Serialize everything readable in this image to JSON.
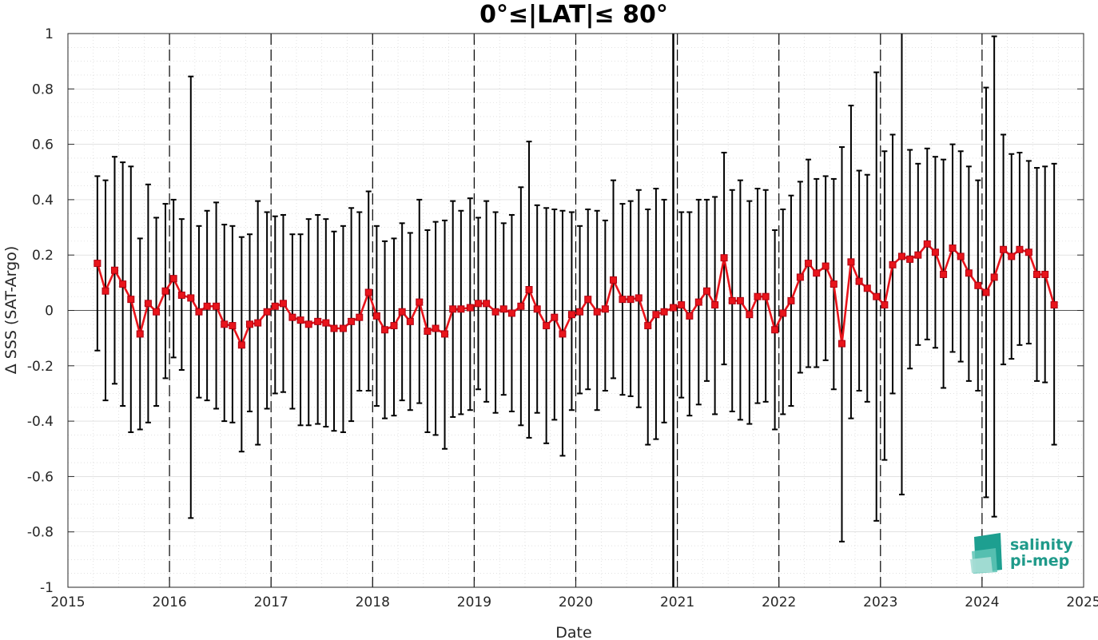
{
  "chart_data": {
    "type": "line",
    "title": "0°≤|LAT|≤ 80°",
    "xlabel": "Date",
    "ylabel": "Δ SSS (SAT-Argo)",
    "xlim": [
      2015,
      2025
    ],
    "ylim": [
      -1,
      1
    ],
    "xticks": [
      2015,
      2016,
      2017,
      2018,
      2019,
      2020,
      2021,
      2022,
      2023,
      2024,
      2025
    ],
    "yticks": [
      -1,
      -0.8,
      -0.6,
      -0.4,
      -0.2,
      0,
      0.2,
      0.4,
      0.6,
      0.8,
      1
    ],
    "ytick_labels": [
      "-1",
      "-0.8",
      "-0.6",
      "-0.4",
      "-0.2",
      "0",
      "0.2",
      "0.4",
      "0.6",
      "0.8",
      "1"
    ],
    "grid": true,
    "year_dividers": [
      2016,
      2017,
      2018,
      2019,
      2020,
      2021,
      2022,
      2023,
      2024
    ],
    "solid_marker_line": 2020.96,
    "colors": {
      "series": "#e8141b",
      "errorbar": "#000000",
      "grid": "#d0d0d0",
      "zero_line": "#555555"
    },
    "series": [
      {
        "x": [
          2015.29,
          2015.37,
          2015.46,
          2015.54,
          2015.62,
          2015.71,
          2015.79,
          2015.87,
          2015.96,
          2016.04,
          2016.12,
          2016.21,
          2016.29,
          2016.37,
          2016.46,
          2016.54,
          2016.62,
          2016.71,
          2016.79,
          2016.87,
          2016.96,
          2017.04,
          2017.12,
          2017.21,
          2017.29,
          2017.37,
          2017.46,
          2017.54,
          2017.62,
          2017.71,
          2017.79,
          2017.87,
          2017.96,
          2018.04,
          2018.12,
          2018.21,
          2018.29,
          2018.37,
          2018.46,
          2018.54,
          2018.62,
          2018.71,
          2018.79,
          2018.87,
          2018.96,
          2019.04,
          2019.12,
          2019.21,
          2019.29,
          2019.37,
          2019.46,
          2019.54,
          2019.62,
          2019.71,
          2019.79,
          2019.87,
          2019.96,
          2020.04,
          2020.12,
          2020.21,
          2020.29,
          2020.37,
          2020.46,
          2020.54,
          2020.62,
          2020.71,
          2020.79,
          2020.87,
          2020.96,
          2021.04,
          2021.12,
          2021.21,
          2021.29,
          2021.37,
          2021.46,
          2021.54,
          2021.62,
          2021.71,
          2021.79,
          2021.87,
          2021.96,
          2022.04,
          2022.12,
          2022.21,
          2022.29,
          2022.37,
          2022.46,
          2022.54,
          2022.62,
          2022.71,
          2022.79,
          2022.87,
          2022.96,
          2023.04,
          2023.12,
          2023.21,
          2023.29,
          2023.37,
          2023.46,
          2023.54,
          2023.62,
          2023.71,
          2023.79,
          2023.87,
          2023.96,
          2024.04,
          2024.12,
          2024.21,
          2024.29,
          2024.37,
          2024.46,
          2024.54,
          2024.62,
          2024.71
        ],
        "y": [
          0.17,
          0.07,
          0.145,
          0.095,
          0.04,
          -0.085,
          0.025,
          -0.005,
          0.07,
          0.115,
          0.055,
          0.045,
          -0.005,
          0.015,
          0.015,
          -0.05,
          -0.055,
          -0.125,
          -0.05,
          -0.045,
          -0.005,
          0.015,
          0.025,
          -0.025,
          -0.035,
          -0.05,
          -0.04,
          -0.045,
          -0.065,
          -0.065,
          -0.04,
          -0.025,
          0.065,
          -0.02,
          -0.07,
          -0.055,
          -0.005,
          -0.04,
          0.03,
          -0.075,
          -0.065,
          -0.085,
          0.005,
          0.005,
          0.01,
          0.025,
          0.025,
          -0.005,
          0.005,
          -0.01,
          0.015,
          0.075,
          0.005,
          -0.055,
          -0.025,
          -0.085,
          -0.015,
          -0.005,
          0.04,
          -0.005,
          0.005,
          0.11,
          0.04,
          0.04,
          0.045,
          -0.055,
          -0.015,
          -0.005,
          0.01,
          0.02,
          -0.02,
          0.03,
          0.07,
          0.02,
          0.19,
          0.035,
          0.035,
          -0.015,
          0.05,
          0.05,
          -0.07,
          -0.01,
          0.035,
          0.12,
          0.17,
          0.135,
          0.16,
          0.095,
          -0.12,
          0.175,
          0.105,
          0.08,
          0.05,
          0.02,
          0.165,
          0.195,
          0.185,
          0.2,
          0.24,
          0.21,
          0.13,
          0.225,
          0.195,
          0.135,
          0.09,
          0.065,
          0.12,
          0.22,
          0.195,
          0.22,
          0.21,
          0.13,
          0.13,
          0.02
        ],
        "err_hi": [
          0.485,
          0.47,
          0.555,
          0.535,
          0.52,
          0.26,
          0.455,
          0.335,
          0.385,
          0.4,
          0.33,
          0.845,
          0.305,
          0.36,
          0.39,
          0.31,
          0.305,
          0.265,
          0.275,
          0.395,
          0.355,
          0.34,
          0.345,
          0.275,
          0.275,
          0.33,
          0.345,
          0.33,
          0.285,
          0.305,
          0.37,
          0.355,
          0.43,
          0.305,
          0.25,
          0.26,
          0.315,
          0.28,
          0.4,
          0.29,
          0.32,
          0.325,
          0.395,
          0.36,
          0.405,
          0.335,
          0.395,
          0.355,
          0.315,
          0.345,
          0.445,
          0.61,
          0.38,
          0.37,
          0.365,
          0.36,
          0.355,
          0.305,
          0.365,
          0.36,
          0.325,
          0.47,
          0.385,
          0.395,
          0.435,
          0.365,
          0.44,
          0.4,
          1.2,
          0.355,
          0.355,
          0.4,
          0.4,
          0.41,
          0.57,
          0.435,
          0.47,
          0.395,
          0.44,
          0.435,
          0.29,
          0.365,
          0.415,
          0.465,
          0.545,
          0.475,
          0.485,
          0.475,
          0.59,
          0.74,
          0.505,
          0.49,
          0.86,
          0.575,
          0.635,
          1.1,
          0.58,
          0.53,
          0.585,
          0.555,
          0.545,
          0.6,
          0.575,
          0.52,
          0.47,
          0.805,
          0.99,
          0.635,
          0.565,
          0.57,
          0.54,
          0.515,
          0.52,
          0.53
        ],
        "err_lo": [
          -0.145,
          -0.325,
          -0.265,
          -0.345,
          -0.44,
          -0.43,
          -0.405,
          -0.345,
          -0.245,
          -0.17,
          -0.215,
          -0.75,
          -0.315,
          -0.325,
          -0.355,
          -0.4,
          -0.405,
          -0.51,
          -0.365,
          -0.485,
          -0.355,
          -0.3,
          -0.295,
          -0.355,
          -0.415,
          -0.415,
          -0.41,
          -0.42,
          -0.435,
          -0.44,
          -0.4,
          -0.29,
          -0.29,
          -0.345,
          -0.39,
          -0.38,
          -0.325,
          -0.36,
          -0.335,
          -0.44,
          -0.45,
          -0.5,
          -0.385,
          -0.375,
          -0.36,
          -0.285,
          -0.33,
          -0.37,
          -0.305,
          -0.365,
          -0.415,
          -0.46,
          -0.37,
          -0.48,
          -0.395,
          -0.525,
          -0.36,
          -0.3,
          -0.285,
          -0.36,
          -0.29,
          -0.245,
          -0.305,
          -0.31,
          -0.35,
          -0.485,
          -0.465,
          -0.405,
          -1.2,
          -0.315,
          -0.38,
          -0.34,
          -0.255,
          -0.375,
          -0.195,
          -0.365,
          -0.395,
          -0.41,
          -0.335,
          -0.33,
          -0.43,
          -0.375,
          -0.345,
          -0.225,
          -0.205,
          -0.205,
          -0.18,
          -0.285,
          -0.835,
          -0.39,
          -0.29,
          -0.33,
          -0.76,
          -0.54,
          -0.3,
          -0.665,
          -0.21,
          -0.125,
          -0.105,
          -0.135,
          -0.28,
          -0.15,
          -0.185,
          -0.255,
          -0.29,
          -0.675,
          -0.745,
          -0.195,
          -0.175,
          -0.125,
          -0.12,
          -0.255,
          -0.26,
          -0.485
        ]
      }
    ],
    "logo": {
      "icon": "salinity-logo-icon",
      "line1": "salinity",
      "line2": "pi-mep"
    }
  }
}
